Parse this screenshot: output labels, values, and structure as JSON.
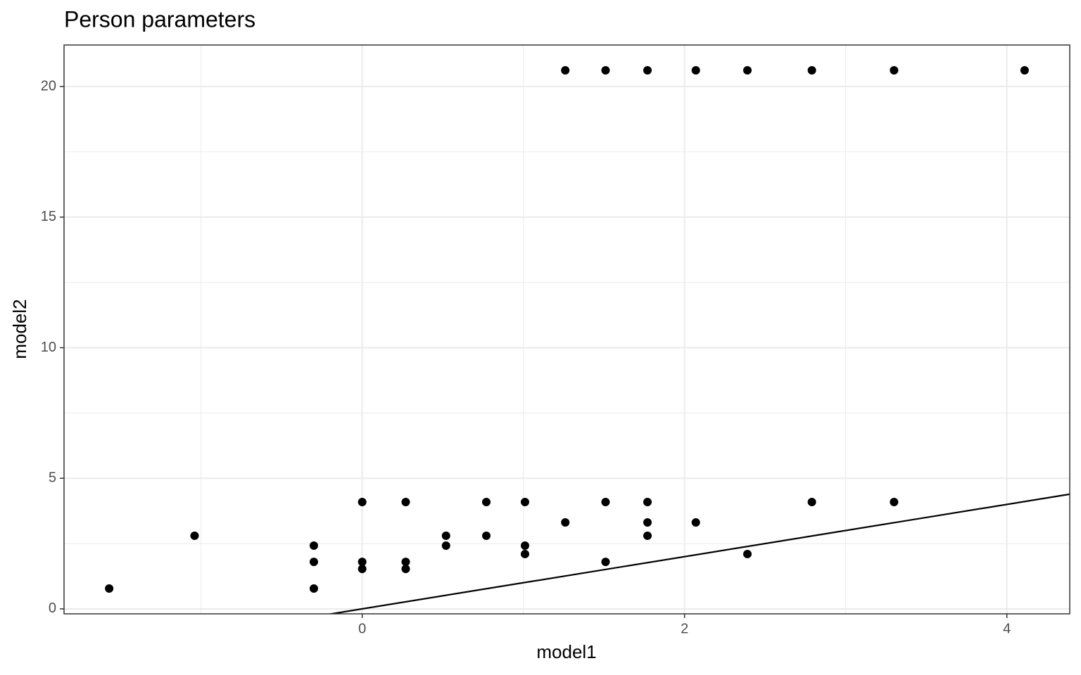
{
  "chart_data": {
    "type": "scatter",
    "title": "Person parameters",
    "x_label": "model1",
    "y_label": "model2",
    "series": [
      {
        "color": "#000000",
        "x": [
          -1.57,
          -1.04,
          -0.3,
          -0.3,
          -0.3,
          0,
          0,
          0,
          0.27,
          0.27,
          0.27,
          0.52,
          0.52,
          0.77,
          0.77,
          1.01,
          1.01,
          1.01,
          1.26,
          1.26,
          1.51,
          1.51,
          1.51,
          1.77,
          1.77,
          1.77,
          1.77,
          2.07,
          2.07,
          2.39,
          2.39,
          2.79,
          2.79,
          3.3,
          3.3,
          4.11
        ],
        "values": [
          0.78,
          2.8,
          2.42,
          1.8,
          0.78,
          4.09,
          1.8,
          1.53,
          4.09,
          1.8,
          1.53,
          2.8,
          2.42,
          4.09,
          2.8,
          4.09,
          2.42,
          2.1,
          20.62,
          3.31,
          20.62,
          4.09,
          1.8,
          20.62,
          4.09,
          3.31,
          2.8,
          20.62,
          3.31,
          20.62,
          2.1,
          20.62,
          4.09,
          20.62,
          4.09,
          20.62
        ]
      }
    ],
    "reference_line": {
      "slope": 1,
      "intercept": 0,
      "color": "#000000"
    },
    "xlim": [
      -1.85,
      4.39
    ],
    "ylim": [
      -0.19,
      21.59
    ],
    "xticks": [
      0,
      2,
      4
    ],
    "yticks": [
      0,
      5,
      10,
      15,
      20
    ],
    "minor_xticks": [
      -1,
      1,
      3
    ],
    "minor_yticks": [
      2.5,
      7.5,
      12.5,
      17.5
    ],
    "grid": true
  }
}
